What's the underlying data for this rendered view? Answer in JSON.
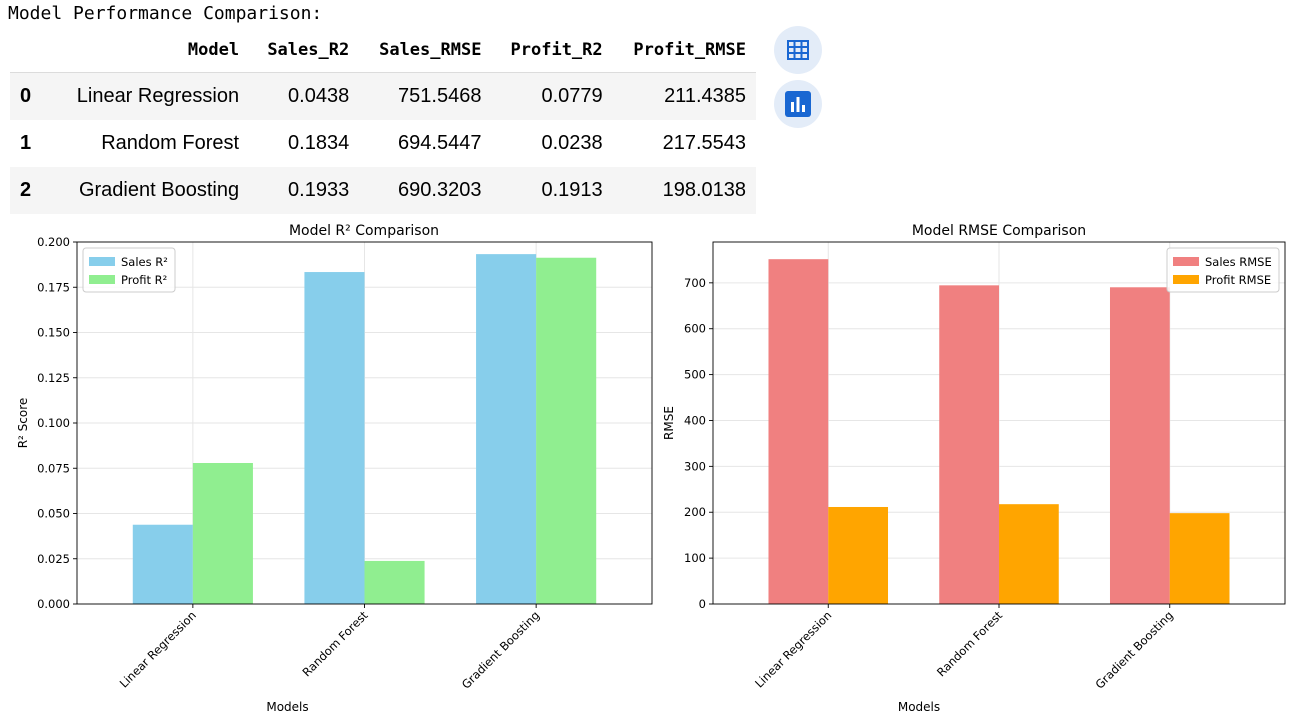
{
  "output_title": "Model Performance Comparison:",
  "table": {
    "columns": [
      "",
      "Model",
      "Sales_R2",
      "Sales_RMSE",
      "Profit_R2",
      "Profit_RMSE"
    ],
    "rows": [
      [
        "0",
        "Linear Regression",
        "0.0438",
        "751.5468",
        "0.0779",
        "211.4385"
      ],
      [
        "1",
        "Random Forest",
        "0.1834",
        "694.5447",
        "0.0238",
        "217.5543"
      ],
      [
        "2",
        "Gradient Boosting",
        "0.1933",
        "690.3203",
        "0.1913",
        "198.0138"
      ]
    ]
  },
  "side_buttons": [
    {
      "icon": "table-icon"
    },
    {
      "icon": "bar-chart-icon"
    }
  ],
  "chart_data": [
    {
      "type": "bar",
      "title": "Model R² Comparison",
      "xlabel": "Models",
      "ylabel": "R² Score",
      "categories": [
        "Linear Regression",
        "Random Forest",
        "Gradient Boosting"
      ],
      "series": [
        {
          "name": "Sales R²",
          "values": [
            0.0438,
            0.1834,
            0.1933
          ],
          "color": "#87ceeb"
        },
        {
          "name": "Profit R²",
          "values": [
            0.0779,
            0.0238,
            0.1913
          ],
          "color": "#90ee90"
        }
      ],
      "ylim": [
        0,
        0.2
      ],
      "yticks": [
        0.0,
        0.025,
        0.05,
        0.075,
        0.1,
        0.125,
        0.15,
        0.175,
        0.2
      ],
      "ytick_labels": [
        "0.000",
        "0.025",
        "0.050",
        "0.075",
        "0.100",
        "0.125",
        "0.150",
        "0.175",
        "0.200"
      ],
      "legend": "upper-left",
      "grid": true
    },
    {
      "type": "bar",
      "title": "Model RMSE Comparison",
      "xlabel": "Models",
      "ylabel": "RMSE",
      "categories": [
        "Linear Regression",
        "Random Forest",
        "Gradient Boosting"
      ],
      "series": [
        {
          "name": "Sales RMSE",
          "values": [
            751.5468,
            694.5447,
            690.3203
          ],
          "color": "#f08080"
        },
        {
          "name": "Profit RMSE",
          "values": [
            211.4385,
            217.5543,
            198.0138
          ],
          "color": "#ffa500"
        }
      ],
      "ylim": [
        0,
        789
      ],
      "yticks": [
        0,
        100,
        200,
        300,
        400,
        500,
        600,
        700
      ],
      "ytick_labels": [
        "0",
        "100",
        "200",
        "300",
        "400",
        "500",
        "600",
        "700"
      ],
      "legend": "upper-right",
      "grid": true
    }
  ]
}
